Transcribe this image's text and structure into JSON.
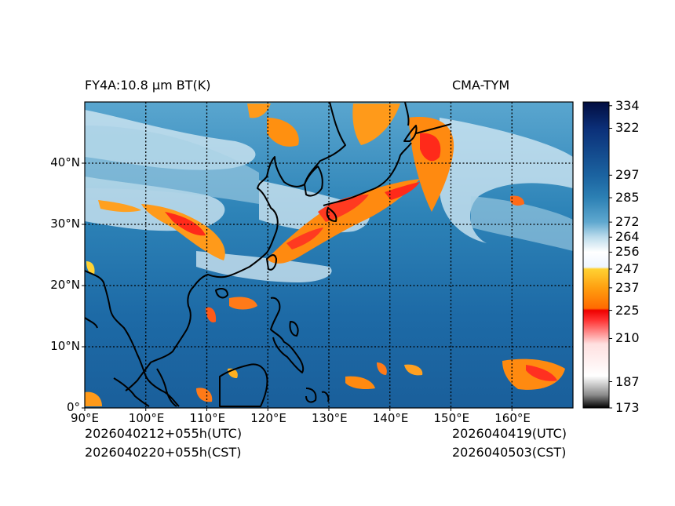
{
  "header": {
    "product": "FY4A:10.8 µm BT(K)",
    "source": "CMA-TYM"
  },
  "footer": {
    "init_utc": "2026040212+055h(UTC)",
    "init_cst": "2026040220+055h(CST)",
    "valid_utc": "2026040419(UTC)",
    "valid_cst": "2026040503(CST)"
  },
  "map": {
    "lon_range": [
      90,
      170
    ],
    "lat_range": [
      0,
      50
    ],
    "lon_ticks": [
      90,
      100,
      110,
      120,
      130,
      140,
      150,
      160
    ],
    "lat_ticks": [
      0,
      10,
      20,
      30,
      40
    ],
    "lon_labels": [
      "90°E",
      "100°E",
      "110°E",
      "120°E",
      "130°E",
      "140°E",
      "150°E",
      "160°E"
    ],
    "lat_labels": [
      "0°",
      "10°N",
      "20°N",
      "30°N",
      "40°N"
    ]
  },
  "colorbar": {
    "range": [
      173,
      336
    ],
    "ticks": [
      173,
      187,
      210,
      225,
      237,
      247,
      256,
      264,
      272,
      285,
      297,
      322,
      334
    ],
    "tick_labels": [
      "173",
      "187",
      "210",
      "225",
      "237",
      "247",
      "256",
      "264",
      "272",
      "285",
      "297",
      "322",
      "334"
    ],
    "stops": [
      {
        "v": 173,
        "color": "#000000"
      },
      {
        "v": 180,
        "color": "#8c8c8c"
      },
      {
        "v": 190,
        "color": "#ffffff"
      },
      {
        "v": 207,
        "color": "#ffe0e0"
      },
      {
        "v": 220,
        "color": "#ff3030"
      },
      {
        "v": 225,
        "color": "#ee0000"
      },
      {
        "v": 226,
        "color": "#ff6a00"
      },
      {
        "v": 237,
        "color": "#ff9f10"
      },
      {
        "v": 247,
        "color": "#ffd233"
      },
      {
        "v": 248,
        "color": "#eef6ff"
      },
      {
        "v": 256,
        "color": "#ffffff"
      },
      {
        "v": 264,
        "color": "#bcdcec"
      },
      {
        "v": 272,
        "color": "#5fa8cf"
      },
      {
        "v": 285,
        "color": "#2c80b4"
      },
      {
        "v": 297,
        "color": "#1b63a0"
      },
      {
        "v": 322,
        "color": "#0b2f78"
      },
      {
        "v": 336,
        "color": "#020d40"
      }
    ]
  }
}
